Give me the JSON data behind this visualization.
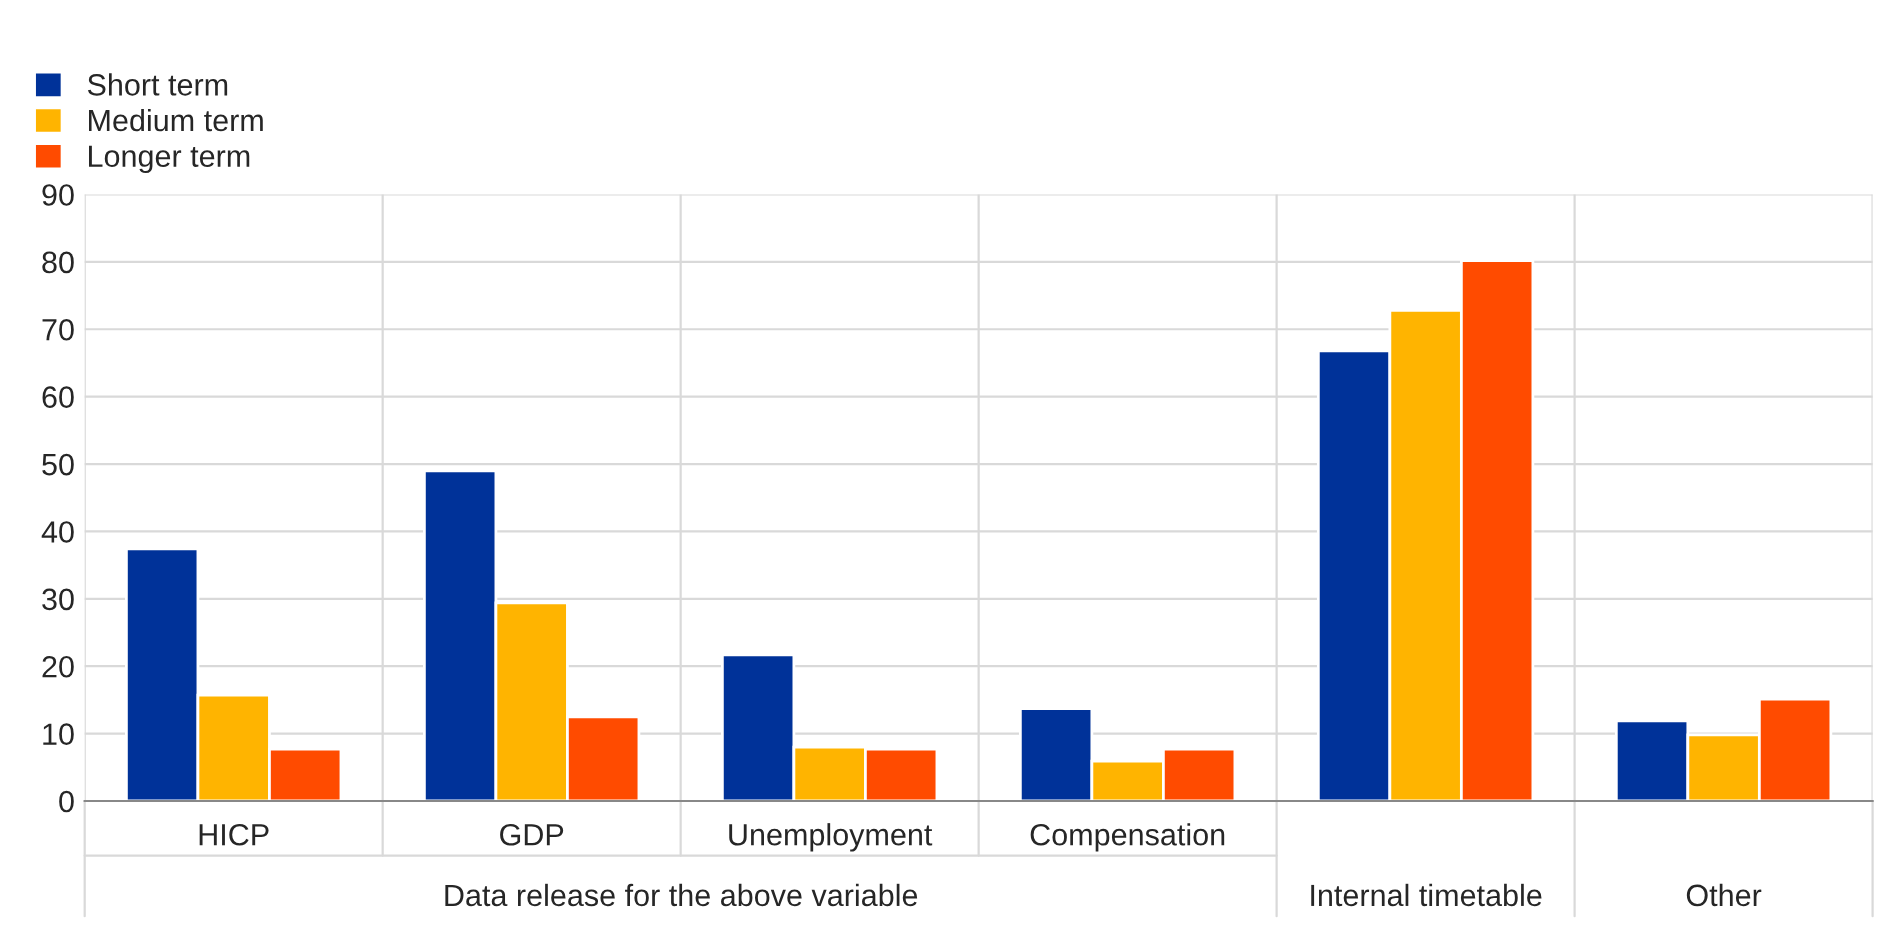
{
  "chart_data": {
    "type": "bar",
    "categories": [
      "HICP",
      "GDP",
      "Unemployment",
      "Compensation",
      null,
      null
    ],
    "series": [
      {
        "name": "Short term",
        "color": "#003299",
        "values": [
          37.4,
          49,
          21.7,
          13.7,
          66.8,
          11.9
        ]
      },
      {
        "name": "Medium term",
        "color": "#ffb400",
        "values": [
          15.7,
          29.4,
          8,
          5.9,
          72.8,
          9.8
        ]
      },
      {
        "name": "Longer term",
        "color": "#ff4b00",
        "values": [
          7.7,
          12.5,
          7.7,
          7.7,
          80.2,
          15.1
        ]
      }
    ],
    "ylim": [
      0,
      90
    ],
    "yticks": [
      0,
      10,
      20,
      30,
      40,
      50,
      60,
      70,
      80,
      90
    ],
    "annotations": [
      "Data release for the above variable",
      "Internal timetable",
      "Other"
    ],
    "grid": true,
    "legend": "top left"
  }
}
